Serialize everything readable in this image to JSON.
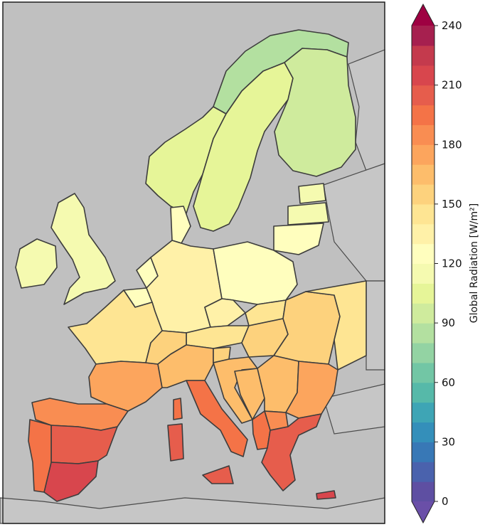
{
  "map": {
    "background_color": "#c0c0c0",
    "border_color": "#3d3d3d",
    "regions": [
      {
        "name": "Norway",
        "value": 100
      },
      {
        "name": "Northern Norway",
        "value": 88
      },
      {
        "name": "Sweden",
        "value": 108
      },
      {
        "name": "Finland",
        "value": 98
      },
      {
        "name": "Estonia",
        "value": 115
      },
      {
        "name": "Latvia",
        "value": 118
      },
      {
        "name": "Lithuania",
        "value": 122
      },
      {
        "name": "United Kingdom",
        "value": 112
      },
      {
        "name": "Ireland",
        "value": 110
      },
      {
        "name": "Denmark",
        "value": 120
      },
      {
        "name": "Netherlands",
        "value": 125
      },
      {
        "name": "Belgium",
        "value": 128
      },
      {
        "name": "Germany",
        "value": 130
      },
      {
        "name": "Poland",
        "value": 128
      },
      {
        "name": "Czechia",
        "value": 135
      },
      {
        "name": "Slovakia",
        "value": 140
      },
      {
        "name": "Austria",
        "value": 142
      },
      {
        "name": "Hungary",
        "value": 150
      },
      {
        "name": "Romania",
        "value": 155
      },
      {
        "name": "Eastern Romania",
        "value": 140
      },
      {
        "name": "Northern France",
        "value": 140
      },
      {
        "name": "Southern France",
        "value": 170
      },
      {
        "name": "Switzerland",
        "value": 150
      },
      {
        "name": "Northern Italy",
        "value": 165
      },
      {
        "name": "Southern Italy",
        "value": 190
      },
      {
        "name": "Sicily",
        "value": 205
      },
      {
        "name": "Sardinia",
        "value": 200
      },
      {
        "name": "Corsica",
        "value": 195
      },
      {
        "name": "Slovenia",
        "value": 155
      },
      {
        "name": "Croatia",
        "value": 165
      },
      {
        "name": "Bosnia and Herzegovina",
        "value": 160
      },
      {
        "name": "Serbia",
        "value": 165
      },
      {
        "name": "Bulgaria",
        "value": 175
      },
      {
        "name": "North Macedonia",
        "value": 185
      },
      {
        "name": "Albania",
        "value": 190
      },
      {
        "name": "Greece",
        "value": 200
      },
      {
        "name": "Crete",
        "value": 215
      },
      {
        "name": "Northern Spain",
        "value": 185
      },
      {
        "name": "Central Spain",
        "value": 200
      },
      {
        "name": "Southern Spain",
        "value": 215
      },
      {
        "name": "Portugal",
        "value": 195
      }
    ]
  },
  "colorbar": {
    "label": "Global Radiation [W/m²]",
    "min": 0,
    "max": 240,
    "step": 10,
    "extend": "both",
    "ticks": [
      "0",
      "30",
      "60",
      "90",
      "120",
      "150",
      "180",
      "210",
      "240"
    ],
    "colors": [
      "#5e4fa2",
      "#4a62ad",
      "#3878b6",
      "#348fba",
      "#3ea5b5",
      "#56b9a9",
      "#72c6a5",
      "#93d3a3",
      "#b3e0a0",
      "#cfeb9d",
      "#e6f598",
      "#f5fab0",
      "#fffebe",
      "#fff1a8",
      "#fee593",
      "#fdd27d",
      "#fdbd6b",
      "#fca55d",
      "#f98d52",
      "#f47347",
      "#e65d4c",
      "#d8464d",
      "#c43a4d",
      "#a6204f"
    ],
    "under_color": "#6a4fa8",
    "over_color": "#9e0142"
  }
}
